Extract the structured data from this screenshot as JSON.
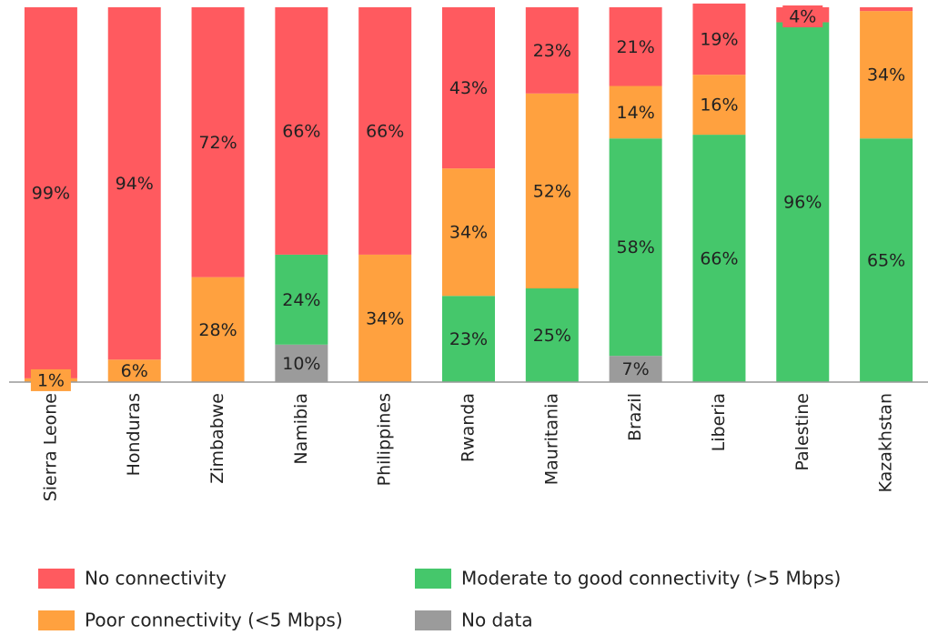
{
  "chart_data": {
    "type": "stacked_bar",
    "categories": [
      "Sierra Leone",
      "Honduras",
      "Zimbabwe",
      "Namibia",
      "Philippines",
      "Rwanda",
      "Mauritania",
      "Brazil",
      "Liberia",
      "Palestine",
      "Kazakhstan"
    ],
    "ylim": [
      0,
      100
    ],
    "legend": "bottom",
    "series": [
      {
        "name": "No connectivity",
        "color": "#ff5a5f",
        "values": [
          99,
          94,
          72,
          66,
          66,
          43,
          23,
          21,
          19,
          4,
          1
        ],
        "value_labels": [
          "99%",
          "94%",
          "72%",
          "66%",
          "66%",
          "43%",
          "23%",
          "21%",
          "19%",
          "4%",
          null
        ]
      },
      {
        "name": "Moderate to good connectivity (>5 Mbps)",
        "color": "#45c76b",
        "values": [
          0,
          0,
          0,
          24,
          0,
          23,
          25,
          58,
          66,
          96,
          65
        ],
        "value_labels": [
          null,
          null,
          null,
          "24%",
          null,
          "23%",
          "25%",
          "58%",
          "66%",
          "96%",
          "65%"
        ]
      },
      {
        "name": "Poor connectivity (<5 Mbps)",
        "color": "#ffa13f",
        "values": [
          1,
          6,
          28,
          0,
          34,
          34,
          52,
          14,
          16,
          0,
          34
        ],
        "value_labels": [
          "1%",
          "6%",
          "28%",
          null,
          "34%",
          "34%",
          "52%",
          "14%",
          "16%",
          null,
          "34%"
        ]
      },
      {
        "name": "No data",
        "color": "#9b9b9b",
        "values": [
          0,
          0,
          0,
          10,
          0,
          0,
          0,
          7,
          0,
          0,
          0
        ],
        "value_labels": [
          null,
          null,
          null,
          "10%",
          null,
          null,
          null,
          "7%",
          null,
          null,
          null
        ]
      }
    ]
  }
}
